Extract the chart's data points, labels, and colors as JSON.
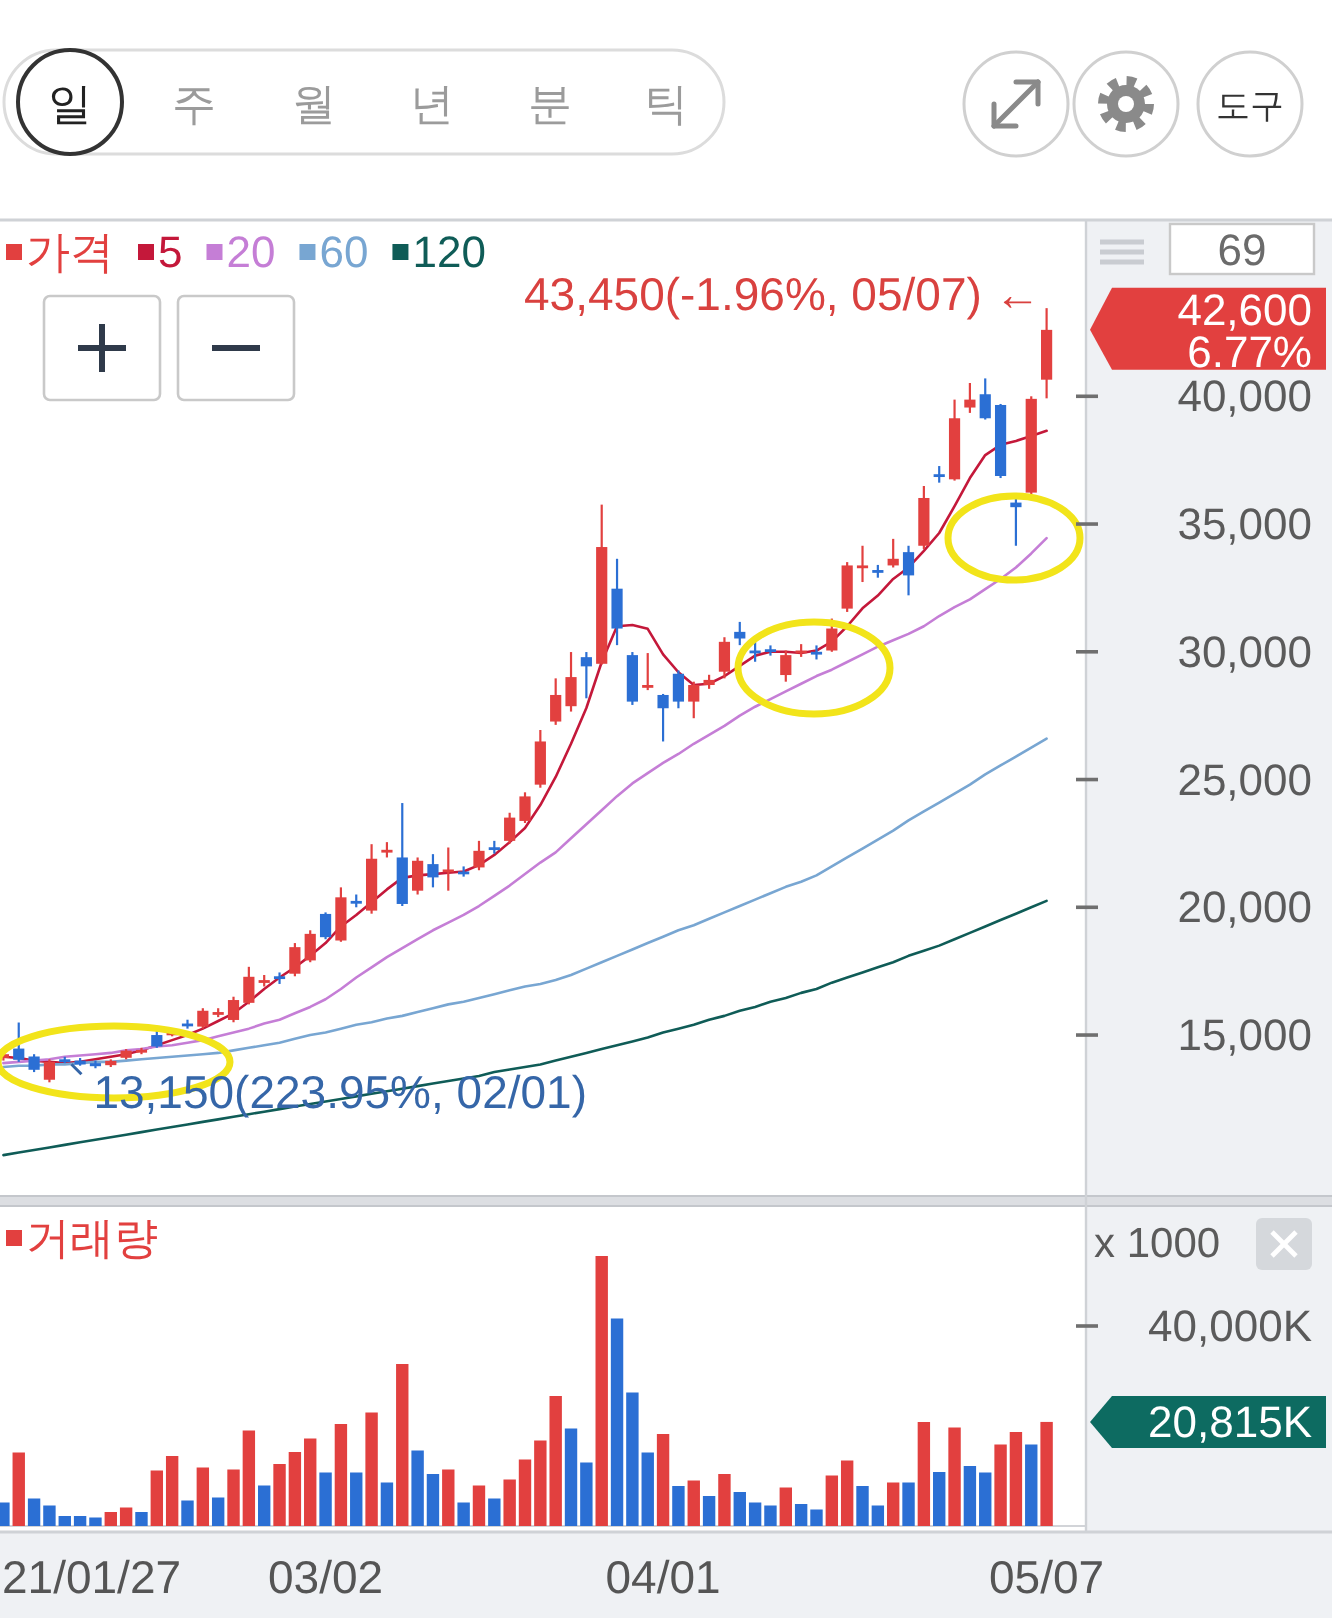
{
  "chart_data": [
    {
      "type": "other",
      "annotations": [
        "일",
        "주",
        "월",
        "년",
        "분",
        "틱",
        "도구"
      ]
    },
    {
      "type": "candlestick",
      "legend": "top left",
      "categories": [
        null,
        null,
        null,
        null,
        null,
        null,
        null,
        null,
        null,
        null,
        null,
        null,
        null,
        null,
        null,
        null,
        null,
        null,
        null,
        null,
        null,
        null,
        null,
        null,
        null,
        null,
        null,
        null,
        null,
        null,
        null,
        null,
        null,
        null,
        null,
        null,
        null,
        null,
        null,
        null,
        null,
        null,
        null,
        null,
        null,
        null,
        null,
        null,
        null,
        null,
        null,
        null,
        null,
        null,
        null,
        null,
        null,
        null,
        null,
        null,
        null,
        null,
        null,
        null,
        null,
        null,
        null,
        null,
        null
      ],
      "ylim": [
        8700,
        46900
      ],
      "yticks": [
        {
          "value": 15000,
          "label": "15,000"
        },
        {
          "value": 20000,
          "label": "20,000"
        },
        {
          "value": 25000,
          "label": "25,000"
        },
        {
          "value": 30000,
          "label": "30,000"
        },
        {
          "value": 35000,
          "label": "35,000"
        },
        {
          "value": 40000,
          "label": "40,000"
        }
      ],
      "series": [
        {
          "name": "가격",
          "type": "candlestick",
          "color": "#e2403f",
          "colors": [
            "#e2403f",
            "#2b6fd4",
            "#2b6fd4",
            "#e2403f",
            "#2b6fd4",
            "#2b6fd4",
            "#2b6fd4",
            "#e2403f",
            "#e2403f",
            "#e2403f",
            "#2b6fd4",
            "#e2403f",
            "#2b6fd4",
            "#e2403f",
            "#e2403f",
            "#e2403f",
            "#e2403f",
            "#e2403f",
            "#2b6fd4",
            "#e2403f",
            "#e2403f",
            "#2b6fd4",
            "#e2403f",
            "#2b6fd4",
            "#e2403f",
            "#e2403f",
            "#2b6fd4",
            "#e2403f",
            "#2b6fd4",
            "#e2403f",
            "#2b6fd4",
            "#e2403f",
            "#2b6fd4",
            "#e2403f",
            "#e2403f",
            "#e2403f",
            "#e2403f",
            "#e2403f",
            "#2b6fd4",
            "#e2403f",
            "#2b6fd4",
            "#2b6fd4",
            "#e2403f",
            "#2b6fd4",
            "#2b6fd4",
            "#e2403f",
            "#e2403f",
            "#e2403f",
            "#2b6fd4",
            "#2b6fd4",
            "#2b6fd4",
            "#e2403f",
            "#e2403f",
            "#2b6fd4",
            "#e2403f",
            "#e2403f",
            "#e2403f",
            "#2b6fd4",
            "#e2403f",
            "#2b6fd4",
            "#e2403f",
            "#2b6fd4",
            "#e2403f",
            "#e2403f",
            "#2b6fd4",
            "#2b6fd4",
            "#2b6fd4",
            "#e2403f",
            "#e2403f"
          ],
          "ohlc": [
            [
              14100,
              14400,
              14000,
              14250
            ],
            [
              14470,
              15490,
              13950,
              14030
            ],
            [
              14160,
              14250,
              13550,
              13640
            ],
            [
              13250,
              14050,
              13150,
              13950
            ],
            [
              14050,
              14150,
              13900,
              13980
            ],
            [
              14000,
              14100,
              13800,
              13850
            ],
            [
              13900,
              14000,
              13700,
              13780
            ],
            [
              13820,
              14050,
              13750,
              13990
            ],
            [
              14110,
              14450,
              14050,
              14390
            ],
            [
              14350,
              14500,
              14250,
              14420
            ],
            [
              15000,
              15200,
              14500,
              14550
            ],
            [
              15050,
              15250,
              14950,
              15100
            ],
            [
              15450,
              15600,
              15250,
              15400
            ],
            [
              15330,
              16050,
              15250,
              15950
            ],
            [
              15850,
              16050,
              15700,
              15900
            ],
            [
              15590,
              16500,
              15500,
              16370
            ],
            [
              16260,
              17670,
              16200,
              17280
            ],
            [
              17100,
              17350,
              16900,
              17150
            ],
            [
              17300,
              17450,
              17000,
              17200
            ],
            [
              17400,
              18600,
              17300,
              18440
            ],
            [
              17920,
              19100,
              17850,
              18960
            ],
            [
              19740,
              19800,
              18750,
              18830
            ],
            [
              18700,
              20780,
              18650,
              20390
            ],
            [
              20250,
              20500,
              20000,
              20200
            ],
            [
              19870,
              22470,
              19750,
              21900
            ],
            [
              22200,
              22550,
              21950,
              22250
            ],
            [
              21950,
              24080,
              20050,
              20130
            ],
            [
              20650,
              21950,
              20500,
              21820
            ],
            [
              21690,
              22080,
              20780,
              21170
            ],
            [
              21380,
              22340,
              20650,
              21480
            ],
            [
              21400,
              21600,
              21200,
              21350
            ],
            [
              21560,
              22600,
              21450,
              22210
            ],
            [
              22350,
              22600,
              22100,
              22300
            ],
            [
              22600,
              23700,
              22500,
              23510
            ],
            [
              23380,
              24500,
              23300,
              24340
            ],
            [
              24800,
              26940,
              24680,
              26490
            ],
            [
              27270,
              28960,
              27140,
              28310
            ],
            [
              27870,
              29990,
              27660,
              29010
            ],
            [
              29790,
              29990,
              28180,
              29430
            ],
            [
              29530,
              35760,
              29500,
              34100
            ],
            [
              32470,
              33640,
              30260,
              30910
            ],
            [
              29870,
              29990,
              27920,
              28050
            ],
            [
              28600,
              29950,
              28500,
              28700
            ],
            [
              28310,
              28350,
              26490,
              27790
            ],
            [
              29140,
              29270,
              27790,
              28050
            ],
            [
              28050,
              28830,
              27400,
              28700
            ],
            [
              28700,
              29100,
              28550,
              28900
            ],
            [
              29220,
              30570,
              28960,
              30390
            ],
            [
              30780,
              31170,
              30260,
              30520
            ],
            [
              30050,
              30400,
              29610,
              29950
            ],
            [
              30100,
              30250,
              29850,
              30000
            ],
            [
              29090,
              30050,
              28830,
              29870
            ],
            [
              29980,
              30300,
              29800,
              30050
            ],
            [
              30000,
              30250,
              29700,
              29950
            ],
            [
              30050,
              31300,
              30000,
              30910
            ],
            [
              31690,
              33510,
              31560,
              33380
            ],
            [
              33300,
              34150,
              32730,
              33380
            ],
            [
              33200,
              33400,
              32900,
              33100
            ],
            [
              33380,
              34420,
              33300,
              33640
            ],
            [
              33900,
              34150,
              32210,
              32990
            ],
            [
              34150,
              36490,
              34020,
              36020
            ],
            [
              36950,
              37270,
              36620,
              36880
            ],
            [
              36750,
              39870,
              36700,
              39140
            ],
            [
              39560,
              40520,
              39350,
              39870
            ],
            [
              40080,
              40700,
              39090,
              39140
            ],
            [
              39660,
              39700,
              36800,
              36880
            ],
            [
              35840,
              36100,
              34150,
              35660
            ],
            [
              36230,
              40000,
              36150,
              39900
            ],
            [
              40650,
              43450,
              39920,
              42600
            ]
          ]
        },
        {
          "name": "5",
          "type": "line",
          "color": "#c4183a",
          "values": [
            14150,
            14100,
            14000,
            13950,
            13900,
            13950,
            14050,
            14150,
            14250,
            14400,
            14600,
            14800,
            15000,
            15250,
            15550,
            15850,
            16300,
            16800,
            17250,
            17650,
            18100,
            18600,
            19250,
            19700,
            20200,
            20700,
            21150,
            21250,
            21300,
            21350,
            21400,
            21650,
            22050,
            22550,
            23100,
            24000,
            25100,
            26400,
            27800,
            29600,
            31000,
            31050,
            30900,
            29900,
            29200,
            28700,
            28750,
            29050,
            29450,
            29850,
            30000,
            30000,
            29950,
            30050,
            30400,
            31000,
            31700,
            32200,
            32850,
            33300,
            33950,
            34650,
            35700,
            36800,
            37700,
            38100,
            38250,
            38450,
            38650
          ]
        },
        {
          "name": "20",
          "type": "line",
          "color": "#c57ed6",
          "values": [
            13900,
            13950,
            14000,
            14050,
            14150,
            14200,
            14250,
            14300,
            14400,
            14450,
            14550,
            14600,
            14700,
            14800,
            14950,
            15100,
            15250,
            15450,
            15600,
            15850,
            16100,
            16400,
            16800,
            17250,
            17650,
            18050,
            18400,
            18750,
            19100,
            19400,
            19700,
            20050,
            20450,
            20850,
            21300,
            21750,
            22150,
            22700,
            23250,
            23800,
            24350,
            24850,
            25250,
            25650,
            26000,
            26400,
            26750,
            27100,
            27500,
            27850,
            28150,
            28450,
            28750,
            29050,
            29300,
            29600,
            29900,
            30200,
            30450,
            30700,
            31000,
            31400,
            31750,
            32050,
            32450,
            32850,
            33300,
            33850,
            34450
          ]
        },
        {
          "name": "60",
          "type": "line",
          "color": "#78a6d2",
          "values": [
            13750,
            13800,
            13800,
            13850,
            13850,
            13900,
            13950,
            13950,
            14000,
            14050,
            14100,
            14150,
            14200,
            14250,
            14300,
            14400,
            14500,
            14600,
            14700,
            14850,
            15000,
            15100,
            15250,
            15400,
            15500,
            15650,
            15750,
            15900,
            16050,
            16200,
            16300,
            16450,
            16600,
            16750,
            16900,
            17000,
            17150,
            17350,
            17600,
            17850,
            18100,
            18350,
            18600,
            18850,
            19100,
            19300,
            19550,
            19800,
            20050,
            20300,
            20550,
            20800,
            21000,
            21250,
            21600,
            21950,
            22300,
            22650,
            23000,
            23400,
            23750,
            24100,
            24450,
            24800,
            25200,
            25550,
            25900,
            26250,
            26600
          ]
        },
        {
          "name": "120",
          "type": "line",
          "color": "#0f5c57",
          "values": [
            10300,
            10400,
            10500,
            10600,
            10700,
            10800,
            10900,
            11000,
            11100,
            11200,
            11300,
            11400,
            11500,
            11600,
            11700,
            11800,
            11900,
            12000,
            12100,
            12200,
            12300,
            12400,
            12500,
            12600,
            12700,
            12800,
            12900,
            13000,
            13100,
            13200,
            13300,
            13400,
            13550,
            13650,
            13750,
            13850,
            14000,
            14150,
            14300,
            14450,
            14600,
            14750,
            14900,
            15100,
            15250,
            15400,
            15600,
            15750,
            15950,
            16100,
            16300,
            16450,
            16650,
            16800,
            17050,
            17250,
            17450,
            17650,
            17850,
            18100,
            18300,
            18500,
            18750,
            19000,
            19250,
            19500,
            19750,
            20000,
            20250
          ]
        }
      ],
      "annotations": [
        "43,450(-1.96%, 05/07) ←",
        "13,150(223.95%, 02/01)",
        "42,600",
        "6.77%",
        "69"
      ]
    },
    {
      "type": "bar",
      "legend": "top left",
      "ylabel": "x 1000",
      "categories": [
        null,
        null,
        null,
        null,
        null,
        null,
        null,
        null,
        null,
        null,
        null,
        null,
        null,
        null,
        null,
        null,
        null,
        null,
        null,
        null,
        null,
        "03/02",
        null,
        null,
        null,
        null,
        null,
        null,
        null,
        null,
        null,
        null,
        null,
        null,
        null,
        null,
        null,
        null,
        null,
        null,
        null,
        null,
        null,
        "04/01",
        null,
        null,
        null,
        null,
        null,
        null,
        null,
        null,
        null,
        null,
        null,
        null,
        null,
        null,
        null,
        null,
        null,
        null,
        null,
        null,
        null,
        null,
        null,
        null,
        "05/07"
      ],
      "ylim": [
        0,
        64000
      ],
      "yticks": [
        {
          "value": 40000,
          "label": "40,000K"
        }
      ],
      "series": [
        {
          "name": "거래량",
          "color": "#e2403f",
          "colors": [
            "#2b6fd4",
            "#e2403f",
            "#2b6fd4",
            "#2b6fd4",
            "#2b6fd4",
            "#2b6fd4",
            "#2b6fd4",
            "#e2403f",
            "#e2403f",
            "#2b6fd4",
            "#e2403f",
            "#e2403f",
            "#2b6fd4",
            "#e2403f",
            "#2b6fd4",
            "#e2403f",
            "#e2403f",
            "#2b6fd4",
            "#e2403f",
            "#e2403f",
            "#e2403f",
            "#2b6fd4",
            "#e2403f",
            "#2b6fd4",
            "#e2403f",
            "#2b6fd4",
            "#e2403f",
            "#2b6fd4",
            "#2b6fd4",
            "#e2403f",
            "#2b6fd4",
            "#e2403f",
            "#2b6fd4",
            "#e2403f",
            "#e2403f",
            "#e2403f",
            "#e2403f",
            "#2b6fd4",
            "#2b6fd4",
            "#e2403f",
            "#2b6fd4",
            "#2b6fd4",
            "#2b6fd4",
            "#e2403f",
            "#2b6fd4",
            "#e2403f",
            "#2b6fd4",
            "#e2403f",
            "#2b6fd4",
            "#2b6fd4",
            "#2b6fd4",
            "#e2403f",
            "#2b6fd4",
            "#2b6fd4",
            "#e2403f",
            "#e2403f",
            "#2b6fd4",
            "#2b6fd4",
            "#e2403f",
            "#2b6fd4",
            "#e2403f",
            "#2b6fd4",
            "#e2403f",
            "#2b6fd4",
            "#2b6fd4",
            "#e2403f",
            "#e2403f",
            "#2b6fd4",
            "#e2403f"
          ],
          "values": [
            4700,
            14700,
            5500,
            4100,
            2000,
            2000,
            1700,
            2800,
            3700,
            2800,
            11100,
            14000,
            5100,
            11700,
            5700,
            11300,
            19100,
            8100,
            12400,
            14800,
            17500,
            10700,
            20400,
            10700,
            22700,
            8700,
            32400,
            15100,
            10400,
            11300,
            4700,
            8100,
            5500,
            9300,
            13300,
            17100,
            26000,
            19500,
            12700,
            54000,
            41500,
            26700,
            14700,
            18400,
            8000,
            9100,
            6000,
            10400,
            6800,
            4700,
            4100,
            7700,
            4400,
            3300,
            10100,
            13100,
            8000,
            4100,
            8700,
            8700,
            20800,
            10800,
            19700,
            12000,
            10700,
            16300,
            18800,
            16300,
            20815
          ]
        }
      ],
      "annotations": [
        {
          "text": "20,815K",
          "x": "05/07",
          "y": 20815
        },
        "21/01/27"
      ]
    }
  ]
}
